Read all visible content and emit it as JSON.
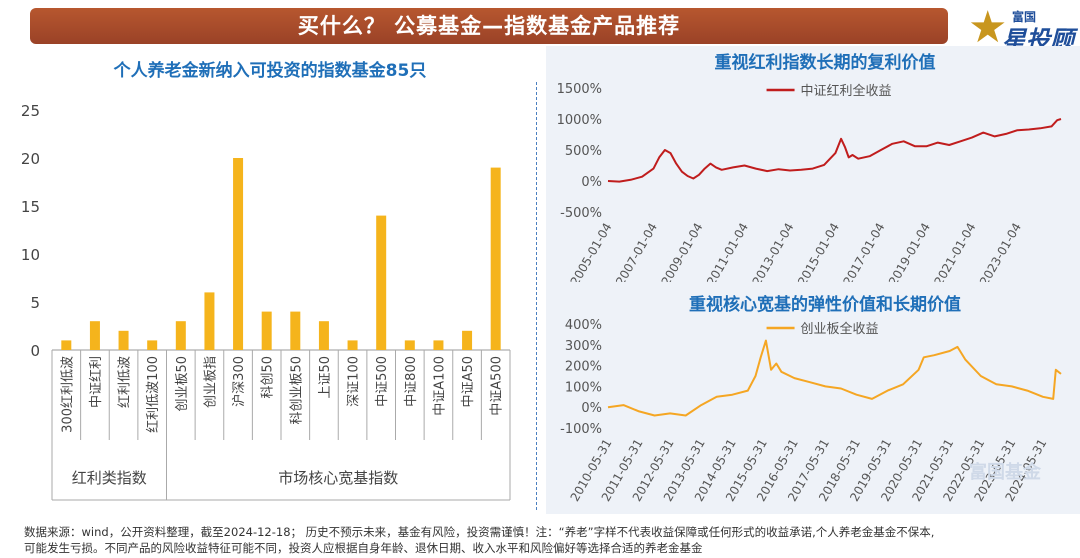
{
  "header": {
    "title": "买什么？ 公募基金—指数基金产品推荐",
    "logo_line1": "富国",
    "logo_line2": "星投顾"
  },
  "left_chart": {
    "title": "个人养老金新纳入可投资的指数基金85只",
    "chart_data": {
      "type": "bar",
      "categories": [
        "300红利低波",
        "中证红利",
        "红利低波",
        "红利低波100",
        "创业板50",
        "创业板指",
        "沪深300",
        "科创50",
        "科创业板50",
        "上证50",
        "深证100",
        "中证500",
        "中证800",
        "中证A100",
        "中证A50",
        "中证A500"
      ],
      "values": [
        1,
        3,
        2,
        1,
        3,
        6,
        20,
        4,
        4,
        3,
        1,
        14,
        1,
        1,
        2,
        19
      ],
      "ylim": [
        0,
        25
      ],
      "yticks": [
        0,
        5,
        10,
        15,
        20,
        25
      ],
      "groups": [
        {
          "label": "红利类指数",
          "start": 0,
          "end": 3
        },
        {
          "label": "市场核心宽基指数",
          "start": 4,
          "end": 15
        }
      ],
      "bar_color": "#f5b41c",
      "grid": false
    }
  },
  "top_right_chart": {
    "title": "重视红利指数长期的复利价值",
    "chart_data": {
      "type": "line",
      "series": [
        {
          "name": "中证红利全收益",
          "color": "#c01d1d",
          "x": [
            "2005-01",
            "2005-07",
            "2006-01",
            "2006-07",
            "2007-01",
            "2007-04",
            "2007-07",
            "2007-10",
            "2008-01",
            "2008-04",
            "2008-07",
            "2008-10",
            "2009-01",
            "2009-04",
            "2009-07",
            "2009-10",
            "2010-01",
            "2010-07",
            "2011-01",
            "2011-07",
            "2012-01",
            "2012-07",
            "2013-01",
            "2013-07",
            "2014-01",
            "2014-07",
            "2015-01",
            "2015-04",
            "2015-06",
            "2015-08",
            "2015-10",
            "2016-01",
            "2016-07",
            "2017-01",
            "2017-07",
            "2018-01",
            "2018-07",
            "2019-01",
            "2019-07",
            "2020-01",
            "2020-07",
            "2021-01",
            "2021-07",
            "2022-01",
            "2022-07",
            "2023-01",
            "2023-07",
            "2024-01",
            "2024-07",
            "2024-10",
            "2024-12"
          ],
          "values": [
            0,
            -10,
            20,
            70,
            200,
            380,
            500,
            450,
            280,
            150,
            80,
            40,
            100,
            200,
            280,
            220,
            180,
            220,
            250,
            200,
            160,
            190,
            170,
            180,
            200,
            260,
            450,
            680,
            550,
            380,
            420,
            360,
            400,
            500,
            600,
            640,
            560,
            560,
            620,
            580,
            640,
            700,
            780,
            720,
            760,
            820,
            830,
            850,
            880,
            980,
            1000
          ]
        }
      ],
      "ylim": [
        -500,
        1500
      ],
      "yticks": [
        "-500%",
        "0%",
        "500%",
        "1000%",
        "1500%"
      ],
      "xticks": [
        "2005-01-04",
        "2007-01-04",
        "2009-01-04",
        "2011-01-04",
        "2013-01-04",
        "2015-01-04",
        "2017-01-04",
        "2019-01-04",
        "2021-01-04",
        "2023-01-04"
      ],
      "legend": "top-center"
    }
  },
  "bottom_right_chart": {
    "title": "重视核心宽基的弹性价值和长期价值",
    "chart_data": {
      "type": "line",
      "series": [
        {
          "name": "创业板全收益",
          "color": "#f5a623",
          "x": [
            "2010-05",
            "2010-11",
            "2011-05",
            "2011-11",
            "2012-05",
            "2012-11",
            "2013-05",
            "2013-11",
            "2014-05",
            "2014-11",
            "2015-02",
            "2015-04",
            "2015-06",
            "2015-08",
            "2015-10",
            "2015-12",
            "2016-05",
            "2016-11",
            "2017-05",
            "2017-11",
            "2018-05",
            "2018-11",
            "2019-05",
            "2019-11",
            "2020-05",
            "2020-07",
            "2020-11",
            "2021-05",
            "2021-08",
            "2021-11",
            "2022-05",
            "2022-11",
            "2023-05",
            "2023-11",
            "2024-05",
            "2024-09",
            "2024-10",
            "2024-12"
          ],
          "values": [
            0,
            10,
            -20,
            -40,
            -30,
            -40,
            10,
            50,
            60,
            80,
            150,
            240,
            320,
            180,
            210,
            170,
            140,
            120,
            100,
            90,
            60,
            40,
            80,
            110,
            180,
            240,
            250,
            270,
            290,
            230,
            150,
            110,
            100,
            80,
            50,
            40,
            180,
            160
          ]
        }
      ],
      "ylim": [
        -100,
        400
      ],
      "yticks": [
        "-100%",
        "0%",
        "100%",
        "200%",
        "300%",
        "400%"
      ],
      "xticks": [
        "2010-05-31",
        "2011-05-31",
        "2012-05-31",
        "2013-05-31",
        "2014-05-31",
        "2015-05-31",
        "2016-05-31",
        "2017-05-31",
        "2018-05-31",
        "2019-05-31",
        "2020-05-31",
        "2021-05-31",
        "2022-05-31",
        "2023-05-31",
        "2024-05-31"
      ],
      "legend": "top-center",
      "watermark": "富国基金"
    }
  },
  "footer": {
    "line1": "数据来源：wind，公开资料整理，截至2024-12-18；  历史不预示未来，基金有风险，投资需谨慎！注：“养老”字样不代表收益保障或任何形式的收益承诺,个人养老金基金不保本,",
    "line2": "可能发生亏损。不同产品的风险收益特征可能不同，投资人应根据自身年龄、退休日期、收入水平和风险偏好等选择合适的养老金基金"
  }
}
